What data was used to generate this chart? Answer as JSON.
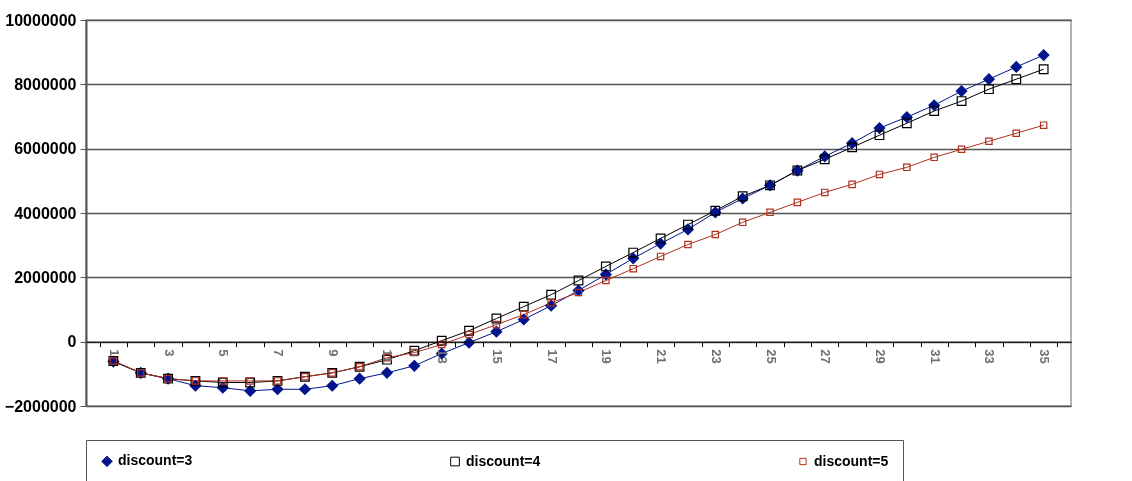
{
  "chart_data": {
    "type": "line",
    "categories": [
      "1",
      null,
      "3",
      null,
      "5",
      null,
      "7",
      null,
      "9",
      null,
      "11",
      null,
      "13",
      null,
      "15",
      null,
      "17",
      null,
      "19",
      null,
      "21",
      null,
      "23",
      null,
      "25",
      null,
      "27",
      null,
      "29",
      null,
      "31",
      null,
      "33",
      null,
      "35"
    ],
    "ylim": [
      -2000000,
      10000000
    ],
    "yticks": [
      -2000000,
      0,
      2000000,
      4000000,
      6000000,
      8000000,
      10000000
    ],
    "grid": "y",
    "legend": "bottom",
    "series": [
      {
        "name": "discount=3",
        "color": "#00148c",
        "marker": "diamond",
        "values": [
          -620000,
          -970000,
          -1150000,
          -1370000,
          -1430000,
          -1530000,
          -1480000,
          -1480000,
          -1370000,
          -1150000,
          -970000,
          -750000,
          -370000,
          -30000,
          310000,
          690000,
          1120000,
          1590000,
          2090000,
          2590000,
          3050000,
          3490000,
          4020000,
          4450000,
          4860000,
          5320000,
          5760000,
          6170000,
          6640000,
          6980000,
          7350000,
          7790000,
          8160000,
          8540000,
          8910000
        ]
      },
      {
        "name": "discount=4",
        "color": "#000000",
        "marker": "square",
        "values": [
          -600000,
          -970000,
          -1150000,
          -1220000,
          -1270000,
          -1270000,
          -1220000,
          -1090000,
          -970000,
          -780000,
          -560000,
          -280000,
          30000,
          340000,
          720000,
          1090000,
          1460000,
          1900000,
          2340000,
          2770000,
          3210000,
          3640000,
          4070000,
          4520000,
          4860000,
          5320000,
          5670000,
          6040000,
          6420000,
          6790000,
          7170000,
          7480000,
          7850000,
          8160000,
          8470000
        ]
      },
      {
        "name": "discount=5",
        "color": "#b03020",
        "marker": "square",
        "values": [
          -600000,
          -970000,
          -1150000,
          -1220000,
          -1220000,
          -1220000,
          -1220000,
          -1090000,
          -970000,
          -780000,
          -500000,
          -340000,
          -90000,
          220000,
          530000,
          840000,
          1210000,
          1530000,
          1900000,
          2270000,
          2650000,
          3020000,
          3330000,
          3710000,
          4020000,
          4330000,
          4640000,
          4890000,
          5200000,
          5420000,
          5730000,
          5980000,
          6230000,
          6480000,
          6730000
        ]
      }
    ]
  }
}
